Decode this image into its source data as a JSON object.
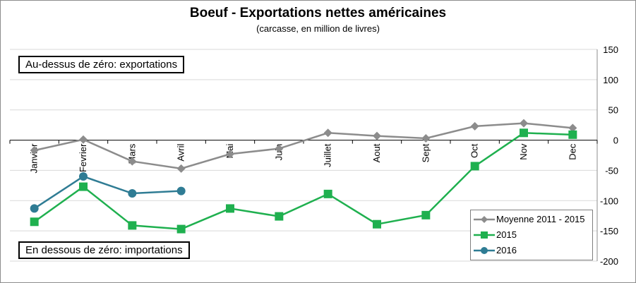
{
  "chart_data": {
    "type": "line",
    "title": "Boeuf - Exportations nettes américaines",
    "subtitle": "(carcasse, en million de livres)",
    "categories": [
      "Janvier",
      "Fevrier",
      "Mars",
      "Avril",
      "Mai",
      "Juin",
      "Juillet",
      "Aout",
      "Sept",
      "Oct",
      "Nov",
      "Dec"
    ],
    "ylim": [
      -200,
      150
    ],
    "yticks": [
      150,
      100,
      50,
      0,
      -50,
      -100,
      -150,
      -200
    ],
    "y_axis_side": "right",
    "grid": true,
    "legend_position": "bottom-right",
    "series": [
      {
        "name": "Moyenne 2011 - 2015",
        "color": "#8c8c8c",
        "marker": "diamond",
        "values": [
          -17,
          1,
          -35,
          -47,
          -23,
          -14,
          12,
          7,
          3,
          23,
          28,
          20
        ]
      },
      {
        "name": "2015",
        "color": "#1fb04f",
        "marker": "square",
        "values": [
          -135,
          -77,
          -141,
          -147,
          -113,
          -126,
          -89,
          -139,
          -124,
          -43,
          12,
          9
        ]
      },
      {
        "name": "2016",
        "color": "#2f7c94",
        "marker": "circle",
        "values": [
          -113,
          -60,
          -88,
          -84,
          null,
          null,
          null,
          null,
          null,
          null,
          null,
          null
        ]
      }
    ],
    "annotations": {
      "above": "Au-dessus de zéro: exportations",
      "below": "En dessous de zéro: importations"
    }
  }
}
